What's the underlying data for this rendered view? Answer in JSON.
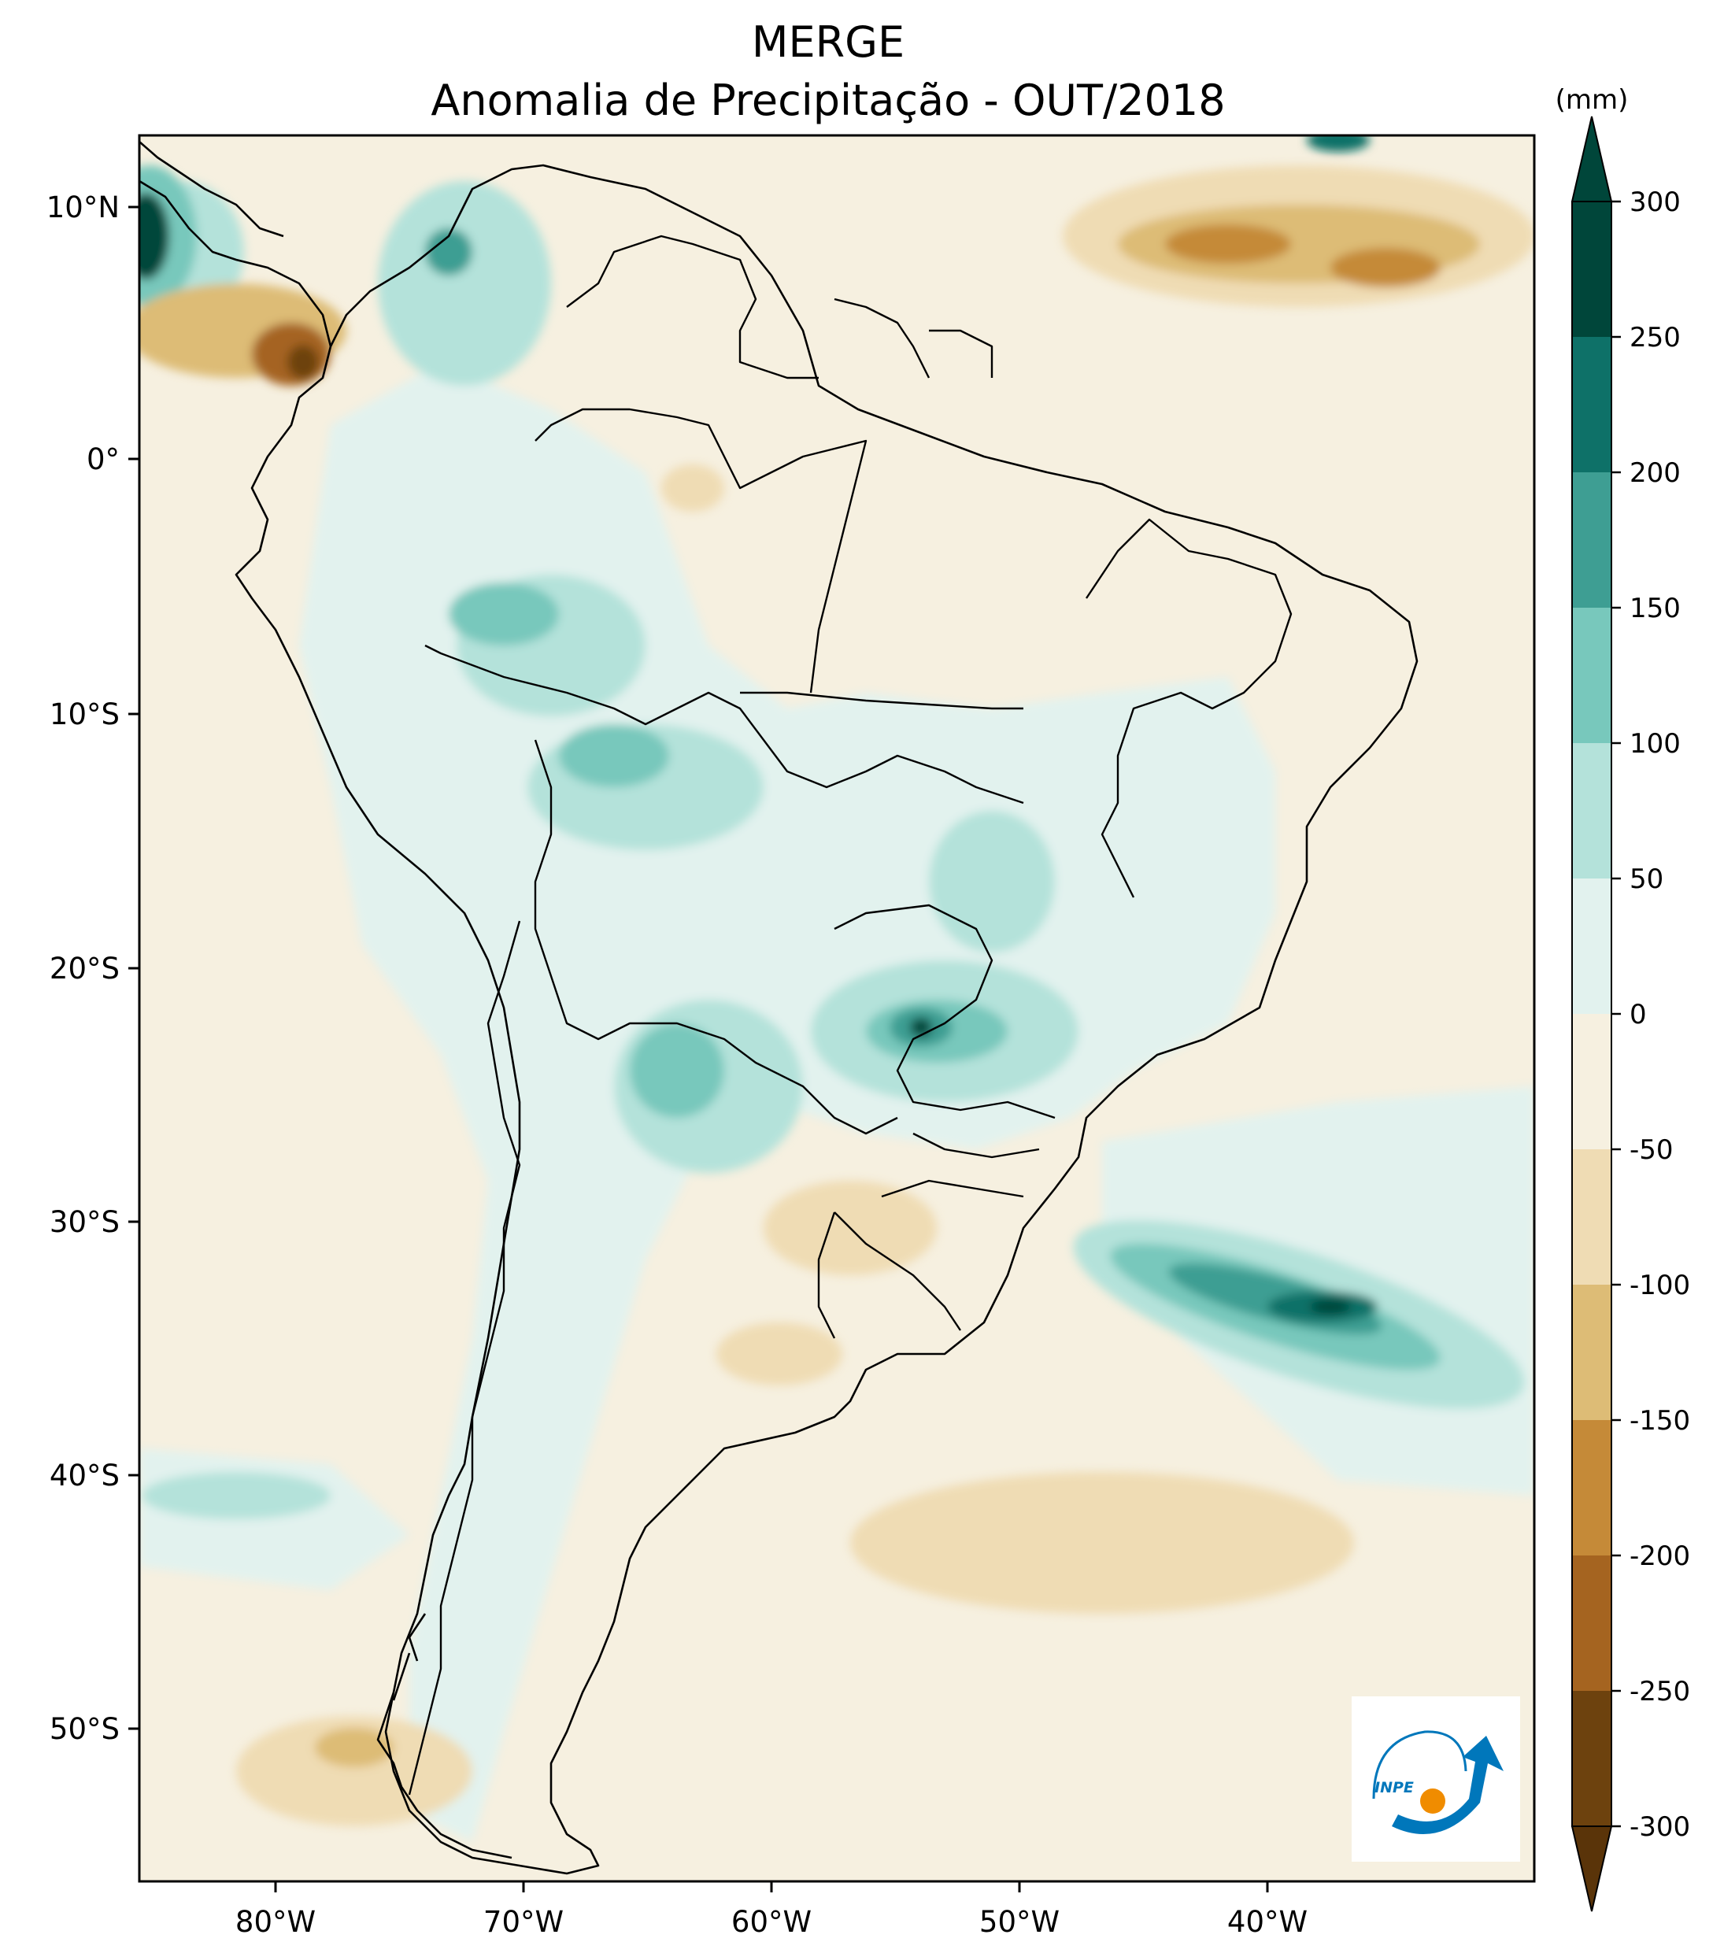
{
  "title": {
    "line1": "MERGE",
    "line2": "Anomalia de Precipitação - OUT/2018"
  },
  "map": {
    "lon_labels": [
      "80°W",
      "70°W",
      "60°W",
      "50°W",
      "40°W"
    ],
    "lat_labels": [
      "10°N",
      "0°",
      "10°S",
      "20°S",
      "30°S",
      "40°S",
      "50°S"
    ]
  },
  "colorbar": {
    "unit": "(mm)",
    "ticks": [
      "300",
      "250",
      "200",
      "150",
      "100",
      "50",
      "0",
      "-50",
      "-100",
      "-150",
      "-200",
      "-250",
      "-300"
    ],
    "colors": {
      "c250_300": "#00463a",
      "c200_250": "#0e7168",
      "c150_200": "#3e9e93",
      "c100_150": "#78c8bc",
      "c50_100": "#b4e2da",
      "c0_50": "#e2f2ee",
      "cm50_0": "#f6f0e0",
      "cm100_m50": "#efdcb4",
      "cm150_m100": "#ddbc76",
      "cm200_m150": "#c58a38",
      "cm250_m200": "#a56420",
      "cm300_m250": "#6d420e"
    }
  },
  "logo": {
    "text": "INPE"
  }
}
